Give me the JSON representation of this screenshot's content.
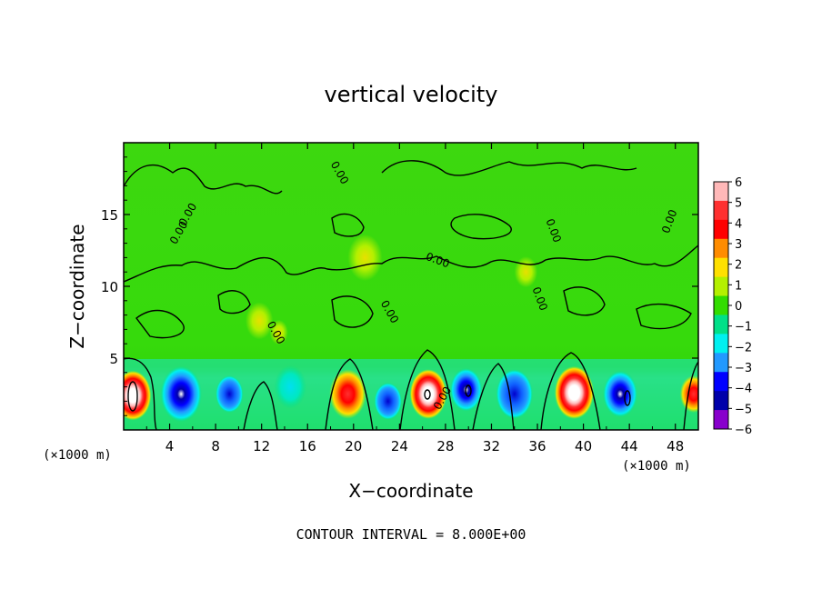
{
  "chart_data": {
    "type": "heatmap",
    "title": "vertical velocity",
    "xlabel": "X−coordinate",
    "ylabel": "Z−coordinate",
    "x_unit_left": "(×1000 m)",
    "x_unit_right": "(×1000 m)",
    "footer": "CONTOUR INTERVAL = 8.000E+00",
    "xlim": [
      0,
      50
    ],
    "ylim": [
      0,
      20
    ],
    "x_ticks": [
      4,
      8,
      12,
      16,
      20,
      24,
      28,
      32,
      36,
      40,
      44,
      48
    ],
    "y_ticks": [
      5,
      10,
      15
    ],
    "contour_labels": [
      "0.00",
      "0.00",
      "0.00",
      "0.00",
      "0.00",
      "0.00",
      "0.00",
      "0.00",
      "0.00",
      "0.00"
    ],
    "colorbar": {
      "ticks": [
        "6",
        "5",
        "4",
        "3",
        "2",
        "1",
        "0",
        "−1",
        "−2",
        "−3",
        "−4",
        "−5",
        "−6"
      ],
      "vmin": -6,
      "vmax": 6,
      "colors": [
        {
          "v": 6,
          "c": "#ffb8b8"
        },
        {
          "v": 5,
          "c": "#ff3030"
        },
        {
          "v": 4,
          "c": "#ff0000"
        },
        {
          "v": 3,
          "c": "#ff8c00"
        },
        {
          "v": 2,
          "c": "#ffe000"
        },
        {
          "v": 1,
          "c": "#b4f000"
        },
        {
          "v": 0,
          "c": "#33dd00"
        },
        {
          "v": -1,
          "c": "#00e088"
        },
        {
          "v": -2,
          "c": "#00f0f0"
        },
        {
          "v": -3,
          "c": "#2299ff"
        },
        {
          "v": -4,
          "c": "#0000ff"
        },
        {
          "v": -5,
          "c": "#0000aa"
        },
        {
          "v": -6,
          "c": "#8800cc"
        }
      ]
    },
    "features": [
      {
        "x": 0.8,
        "z": 2.4,
        "w": 1.6,
        "peak": 8
      },
      {
        "x": 5.0,
        "z": 2.5,
        "w": 1.8,
        "peak": -4
      },
      {
        "x": 9.2,
        "z": 2.5,
        "w": 1.2,
        "peak": -3.5
      },
      {
        "x": 14.5,
        "z": 3.0,
        "w": 1.4,
        "peak": -1.5
      },
      {
        "x": 19.5,
        "z": 2.5,
        "w": 1.6,
        "peak": 5
      },
      {
        "x": 23.0,
        "z": 2.0,
        "w": 1.2,
        "peak": -3.5
      },
      {
        "x": 26.5,
        "z": 2.5,
        "w": 1.6,
        "peak": 8
      },
      {
        "x": 29.8,
        "z": 2.8,
        "w": 1.4,
        "peak": -4.5
      },
      {
        "x": 34.0,
        "z": 2.5,
        "w": 1.6,
        "peak": -3.5
      },
      {
        "x": 39.2,
        "z": 2.6,
        "w": 1.7,
        "peak": 8
      },
      {
        "x": 43.2,
        "z": 2.5,
        "w": 1.5,
        "peak": -4.5
      },
      {
        "x": 49.6,
        "z": 2.5,
        "w": 1.2,
        "peak": 5
      },
      {
        "x": 11.8,
        "z": 7.6,
        "w": 1.2,
        "peak": 1
      },
      {
        "x": 13.5,
        "z": 6.8,
        "w": 0.8,
        "peak": 1.2
      },
      {
        "x": 21.0,
        "z": 12.0,
        "w": 1.5,
        "peak": 0.6
      },
      {
        "x": 35.0,
        "z": 11.0,
        "w": 1.0,
        "peak": 0.8
      }
    ]
  }
}
